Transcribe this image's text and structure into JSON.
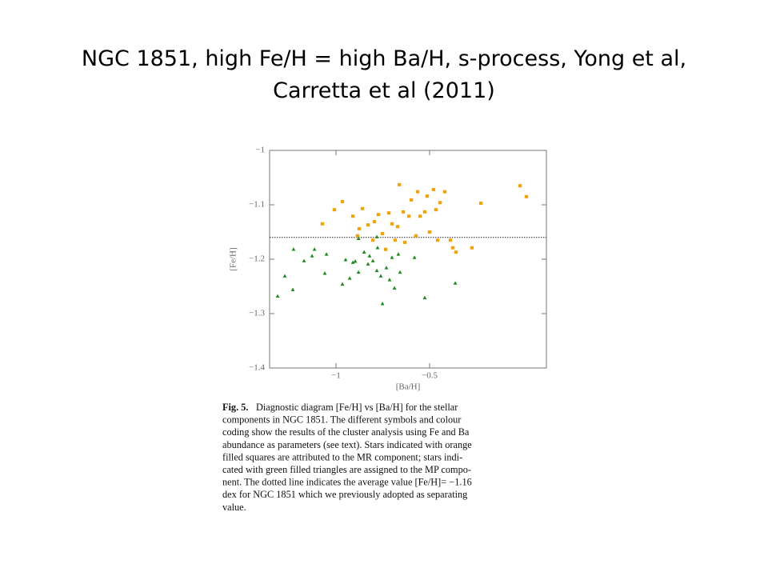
{
  "title": [
    "NGC 1851, high Fe/H = high Ba/H, s-process, Yong et al,",
    "Carretta et al (2011)"
  ],
  "chart_data": {
    "type": "scatter",
    "xlabel": "[Ba/H]",
    "ylabel": "[Fe/H]",
    "xlim": [
      -1.355,
      0.124
    ],
    "ylim": [
      -1.4,
      -1.0
    ],
    "xticks": [
      {
        "value": -1,
        "label": "−1"
      },
      {
        "value": -0.5,
        "label": "−0.5"
      }
    ],
    "yticks": [
      {
        "value": -1,
        "label": "−1"
      },
      {
        "value": -1.1,
        "label": "−1.1"
      },
      {
        "value": -1.2,
        "label": "−1.2"
      },
      {
        "value": -1.3,
        "label": "−1.3"
      },
      {
        "value": -1.4,
        "label": "−1.4"
      }
    ],
    "hline": -1.16,
    "series": [
      {
        "color": "#f0a30a",
        "marker": "square",
        "x": [
          -1.073,
          -1.009,
          -0.966,
          -0.91,
          -0.885,
          -0.876,
          -0.859,
          -0.829,
          -0.803,
          -0.795,
          -0.774,
          -0.752,
          -0.718,
          -0.701,
          -0.684,
          -0.671,
          -0.662,
          -0.641,
          -0.632,
          -0.611,
          -0.598,
          -0.573,
          -0.564,
          -0.551,
          -0.526,
          -0.513,
          -0.5,
          -0.479,
          -0.466,
          -0.457,
          -0.444,
          -0.419,
          -0.389,
          -0.376,
          -0.359,
          -0.274,
          -0.226,
          -0.017,
          0.017,
          -0.735
        ],
        "values": [
          -1.135,
          -1.109,
          -1.094,
          -1.121,
          -1.157,
          -1.144,
          -1.107,
          -1.137,
          -1.165,
          -1.131,
          -1.118,
          -1.153,
          -1.115,
          -1.135,
          -1.165,
          -1.14,
          -1.063,
          -1.113,
          -1.169,
          -1.121,
          -1.091,
          -1.157,
          -1.076,
          -1.121,
          -1.113,
          -1.084,
          -1.15,
          -1.072,
          -1.109,
          -1.165,
          -1.096,
          -1.076,
          -1.165,
          -1.179,
          -1.187,
          -1.179,
          -1.097,
          -1.065,
          -1.085,
          -1.182
        ]
      },
      {
        "color": "#1f8a1f",
        "marker": "triangle",
        "x": [
          -1.312,
          -1.274,
          -1.231,
          -1.227,
          -1.171,
          -1.128,
          -1.115,
          -1.06,
          -1.051,
          -0.966,
          -0.949,
          -0.927,
          -0.91,
          -0.897,
          -0.88,
          -0.85,
          -0.829,
          -0.821,
          -0.803,
          -0.782,
          -0.778,
          -0.761,
          -0.752,
          -0.731,
          -0.714,
          -0.701,
          -0.688,
          -0.667,
          -0.658,
          -0.581,
          -0.526,
          -0.363,
          -0.88,
          -0.782
        ],
        "values": [
          -1.268,
          -1.231,
          -1.256,
          -1.182,
          -1.203,
          -1.194,
          -1.182,
          -1.226,
          -1.191,
          -1.246,
          -1.201,
          -1.235,
          -1.206,
          -1.204,
          -1.224,
          -1.187,
          -1.209,
          -1.194,
          -1.203,
          -1.221,
          -1.179,
          -1.231,
          -1.282,
          -1.216,
          -1.238,
          -1.197,
          -1.253,
          -1.191,
          -1.224,
          -1.197,
          -1.271,
          -1.244,
          -1.162,
          -1.159
        ]
      }
    ]
  },
  "caption": {
    "label": "Fig. 5.",
    "lines": [
      "Diagnostic diagram [Fe/H] vs [Ba/H] for the stellar",
      "components in NGC 1851. The different symbols and colour",
      "coding show the results of the cluster analysis using Fe and Ba",
      "abundance as parameters (see text). Stars indicated with orange",
      "filled squares are attributed to the MR component; stars indi-",
      "cated with green filled triangles are assigned to the MP compo-",
      "nent. The dotted line indicates the average value [Fe/H]= −1.16",
      "dex for NGC 1851 which we previously adopted as separating",
      "value."
    ]
  }
}
